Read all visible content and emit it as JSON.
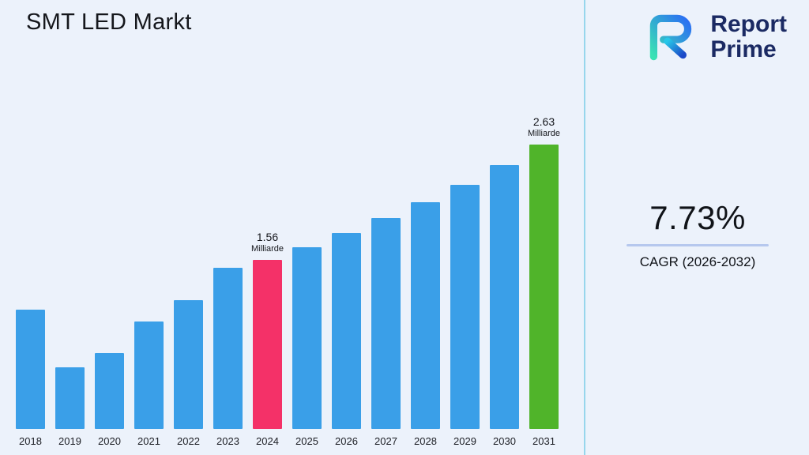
{
  "title": "SMT LED Markt",
  "colors": {
    "background": "#ecf2fb",
    "bar_default": "#3a9fe8",
    "bar_2024": "#f43168",
    "bar_2031": "#50b42a",
    "divider": "#97d6ec",
    "underline": "#b6c8ee"
  },
  "cagr": {
    "value": "7.73%",
    "label": "CAGR (2026-2032)"
  },
  "logo": {
    "line1": "Report",
    "line2": "Prime"
  },
  "chart_data": {
    "type": "bar",
    "title": "SMT LED Markt",
    "categories": [
      "2018",
      "2019",
      "2020",
      "2021",
      "2022",
      "2023",
      "2024",
      "2025",
      "2026",
      "2027",
      "2028",
      "2029",
      "2030",
      "2031"
    ],
    "values": [
      1.1,
      0.57,
      0.7,
      0.99,
      1.19,
      1.49,
      1.56,
      1.68,
      1.81,
      1.95,
      2.1,
      2.26,
      2.44,
      2.63
    ],
    "unit": "Milliarde",
    "ylim": [
      0,
      2.8
    ],
    "grid": false,
    "legend": "none",
    "highlight_colors": {
      "2024": "#f43168",
      "2031": "#50b42a"
    },
    "annotations": [
      {
        "category": "2024",
        "value_label": "1.56",
        "unit_label": "Milliarde"
      },
      {
        "category": "2031",
        "value_label": "2.63",
        "unit_label": "Milliarde"
      }
    ]
  }
}
